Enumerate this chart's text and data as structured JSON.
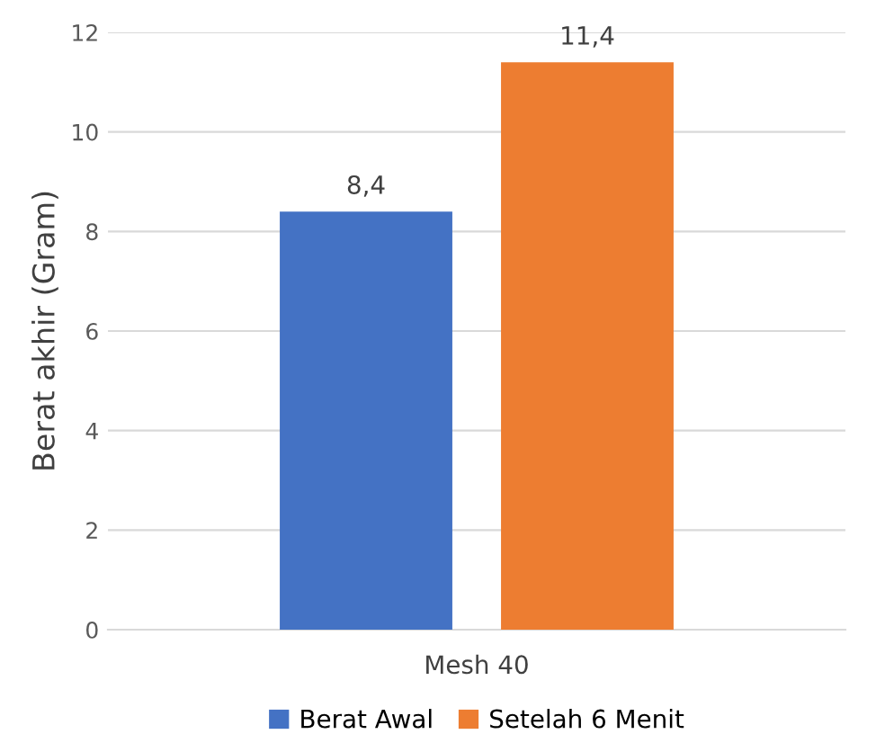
{
  "chart_data": {
    "type": "bar",
    "ylabel": "Berat akhir (Gram)",
    "categories": [
      "Mesh 40"
    ],
    "series": [
      {
        "name": "Berat Awal",
        "color": "#4472c4",
        "values": [
          8.4
        ],
        "value_labels": [
          "8,4"
        ]
      },
      {
        "name": "Setelah 6 Menit",
        "color": "#ed7d31",
        "values": [
          11.4
        ],
        "value_labels": [
          "11,4"
        ]
      }
    ],
    "ylim": [
      0,
      12
    ],
    "yticks": [
      0,
      2,
      4,
      6,
      8,
      10,
      12
    ],
    "grid": "y",
    "legend": "bottom"
  }
}
